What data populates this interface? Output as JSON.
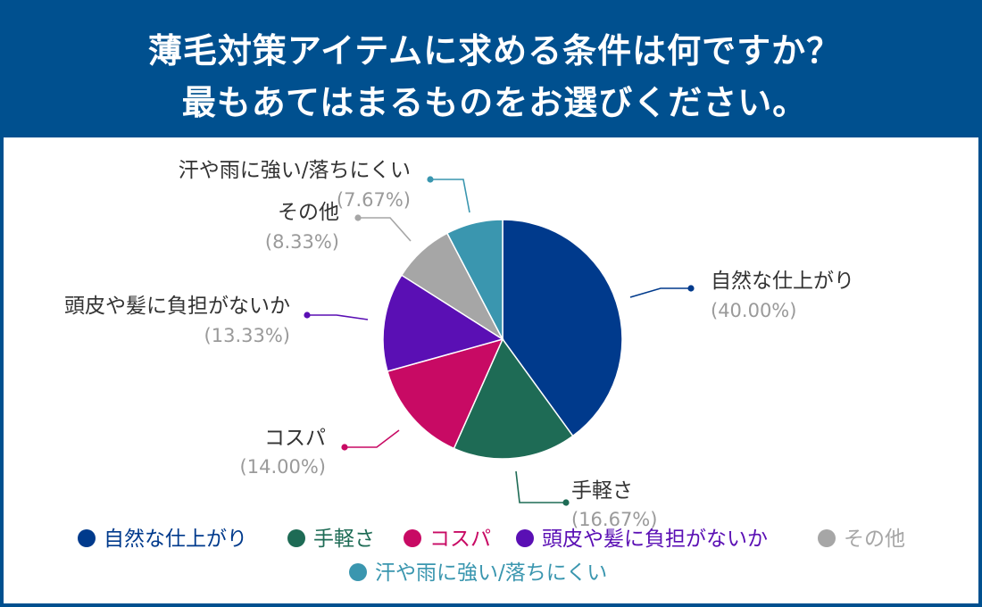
{
  "title": {
    "line1": "薄毛対策アイテムに求める条件は何ですか？",
    "line2": "最もあてはまるものをお選びください。"
  },
  "chart_data": {
    "type": "pie",
    "slices": [
      {
        "label": "自然な仕上がり",
        "value": 40.0,
        "pct_text": "(40.00%)",
        "color": "#003a8c"
      },
      {
        "label": "手軽さ",
        "value": 16.67,
        "pct_text": "(16.67%)",
        "color": "#1e6b55"
      },
      {
        "label": "コスパ",
        "value": 14.0,
        "pct_text": "(14.00%)",
        "color": "#c80a64"
      },
      {
        "label": "頭皮や髪に負担がないか",
        "value": 13.33,
        "pct_text": "(13.33%)",
        "color": "#5a0fb4"
      },
      {
        "label": "その他",
        "value": 8.33,
        "pct_text": "(8.33%)",
        "color": "#a6a6a6"
      },
      {
        "label": "汗や雨に強い/落ちにくい",
        "value": 7.67,
        "pct_text": "(7.67%)",
        "color": "#3a96af"
      }
    ],
    "legend_position": "bottom"
  }
}
